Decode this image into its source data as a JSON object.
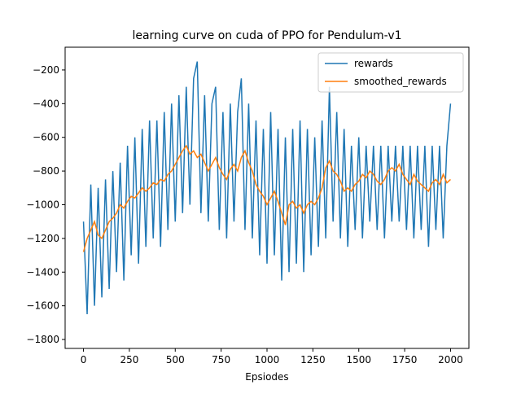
{
  "chart_data": {
    "type": "line",
    "title": "learning curve on cuda of PPO for Pendulum-v1",
    "x_label": "Epsiodes",
    "x": [
      0,
      20,
      40,
      60,
      80,
      100,
      120,
      140,
      160,
      180,
      200,
      220,
      240,
      260,
      280,
      300,
      320,
      340,
      360,
      380,
      400,
      420,
      440,
      460,
      480,
      500,
      520,
      540,
      560,
      580,
      600,
      620,
      640,
      660,
      680,
      700,
      720,
      740,
      760,
      780,
      800,
      820,
      840,
      860,
      880,
      900,
      920,
      940,
      960,
      980,
      1000,
      1020,
      1040,
      1060,
      1080,
      1100,
      1120,
      1140,
      1160,
      1180,
      1200,
      1220,
      1240,
      1260,
      1280,
      1300,
      1320,
      1340,
      1360,
      1380,
      1400,
      1420,
      1440,
      1460,
      1480,
      1500,
      1520,
      1540,
      1560,
      1580,
      1600,
      1620,
      1640,
      1660,
      1680,
      1700,
      1720,
      1740,
      1760,
      1780,
      1800,
      1820,
      1840,
      1860,
      1880,
      1900,
      1920,
      1940,
      1960,
      1980,
      2000
    ],
    "series": [
      {
        "name": "rewards",
        "color": "#1f77b4",
        "values": [
          -1100,
          -1650,
          -880,
          -1600,
          -900,
          -1550,
          -850,
          -1500,
          -800,
          -1400,
          -750,
          -1450,
          -650,
          -1300,
          -600,
          -1350,
          -550,
          -1250,
          -500,
          -1200,
          -500,
          -1250,
          -450,
          -1150,
          -400,
          -1100,
          -350,
          -1050,
          -300,
          -1000,
          -250,
          -150,
          -1050,
          -350,
          -1100,
          -400,
          -300,
          -1150,
          -450,
          -1200,
          -400,
          -1100,
          -450,
          -250,
          -1150,
          -400,
          -1200,
          -500,
          -1300,
          -550,
          -1350,
          -450,
          -1300,
          -550,
          -1450,
          -600,
          -1400,
          -550,
          -1350,
          -500,
          -1400,
          -550,
          -1300,
          -600,
          -1250,
          -500,
          -1200,
          -300,
          -1100,
          -450,
          -1200,
          -550,
          -1250,
          -650,
          -1150,
          -600,
          -1200,
          -650,
          -1100,
          -650,
          -1150,
          -650,
          -1200,
          -650,
          -1100,
          -650,
          -1100,
          -650,
          -1150,
          -650,
          -1200,
          -650,
          -1150,
          -650,
          -1250,
          -650,
          -1150,
          -650,
          -1200,
          -650,
          -400
        ]
      },
      {
        "name": "smoothed_rewards",
        "color": "#ff7f0e",
        "values": [
          -1280,
          -1200,
          -1150,
          -1100,
          -1180,
          -1200,
          -1150,
          -1100,
          -1080,
          -1050,
          -1000,
          -1020,
          -980,
          -950,
          -960,
          -930,
          -900,
          -920,
          -900,
          -870,
          -880,
          -850,
          -860,
          -820,
          -800,
          -760,
          -720,
          -680,
          -650,
          -700,
          -680,
          -720,
          -700,
          -750,
          -800,
          -760,
          -720,
          -780,
          -820,
          -850,
          -790,
          -760,
          -800,
          -720,
          -680,
          -750,
          -800,
          -880,
          -920,
          -950,
          -1000,
          -960,
          -920,
          -980,
          -1050,
          -1120,
          -1000,
          -980,
          -1020,
          -1000,
          -1050,
          -1000,
          -980,
          -1000,
          -960,
          -900,
          -780,
          -740,
          -800,
          -820,
          -860,
          -920,
          -900,
          -920,
          -880,
          -860,
          -820,
          -840,
          -800,
          -820,
          -860,
          -880,
          -850,
          -800,
          -780,
          -800,
          -760,
          -820,
          -850,
          -880,
          -820,
          -860,
          -880,
          -900,
          -920,
          -870,
          -850,
          -880,
          -820,
          -870,
          -850
        ]
      }
    ],
    "xlim": [
      -100,
      2100
    ],
    "ylim": [
      -1853,
      -65
    ],
    "xticks": [
      0,
      250,
      500,
      750,
      1000,
      1250,
      1500,
      1750,
      2000
    ],
    "yticks": [
      {
        "value": -1800,
        "label": "−1800"
      },
      {
        "value": -1600,
        "label": "−1600"
      },
      {
        "value": -1400,
        "label": "−1400"
      },
      {
        "value": -1200,
        "label": "−1200"
      },
      {
        "value": -1000,
        "label": "−1000"
      },
      {
        "value": -800,
        "label": "−800"
      },
      {
        "value": -600,
        "label": "−600"
      },
      {
        "value": -400,
        "label": "−400"
      },
      {
        "value": -200,
        "label": "−200"
      }
    ],
    "legend": "upper right",
    "grid": false
  }
}
